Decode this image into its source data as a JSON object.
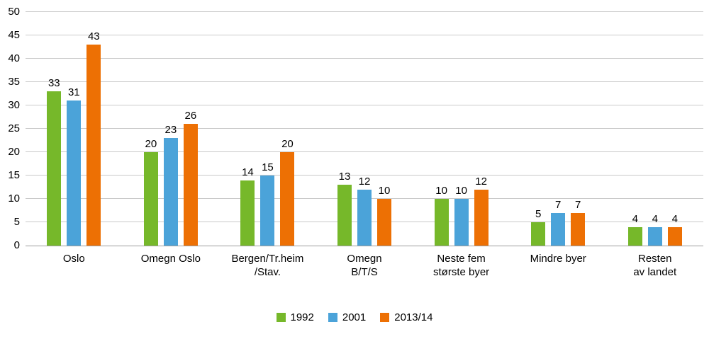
{
  "chart_data": {
    "type": "bar",
    "title": "",
    "xlabel": "",
    "ylabel": "",
    "ylim": [
      0,
      50
    ],
    "yticks": [
      0,
      5,
      10,
      15,
      20,
      25,
      30,
      35,
      40,
      45,
      50
    ],
    "grid": true,
    "legend_position": "bottom",
    "categories": [
      "Oslo",
      "Omegn Oslo",
      "Bergen/Tr.heim /Stav.",
      "Omegn B/T/S",
      "Neste fem største byer",
      "Mindre byer",
      "Resten av landet"
    ],
    "category_lines": [
      [
        "Oslo"
      ],
      [
        "Omegn Oslo"
      ],
      [
        "Bergen/Tr.heim",
        "/Stav."
      ],
      [
        "Omegn",
        "B/T/S"
      ],
      [
        "Neste fem",
        "største byer"
      ],
      [
        "Mindre byer"
      ],
      [
        "Resten",
        "av landet"
      ]
    ],
    "series": [
      {
        "name": "1992",
        "color": "#76B82A",
        "values": [
          33,
          20,
          14,
          13,
          10,
          5,
          4
        ]
      },
      {
        "name": "2001",
        "color": "#4BA3D9",
        "values": [
          31,
          23,
          15,
          12,
          10,
          7,
          4
        ]
      },
      {
        "name": "2013/14",
        "color": "#ED7004",
        "values": [
          43,
          26,
          20,
          10,
          12,
          7,
          4
        ]
      }
    ]
  }
}
